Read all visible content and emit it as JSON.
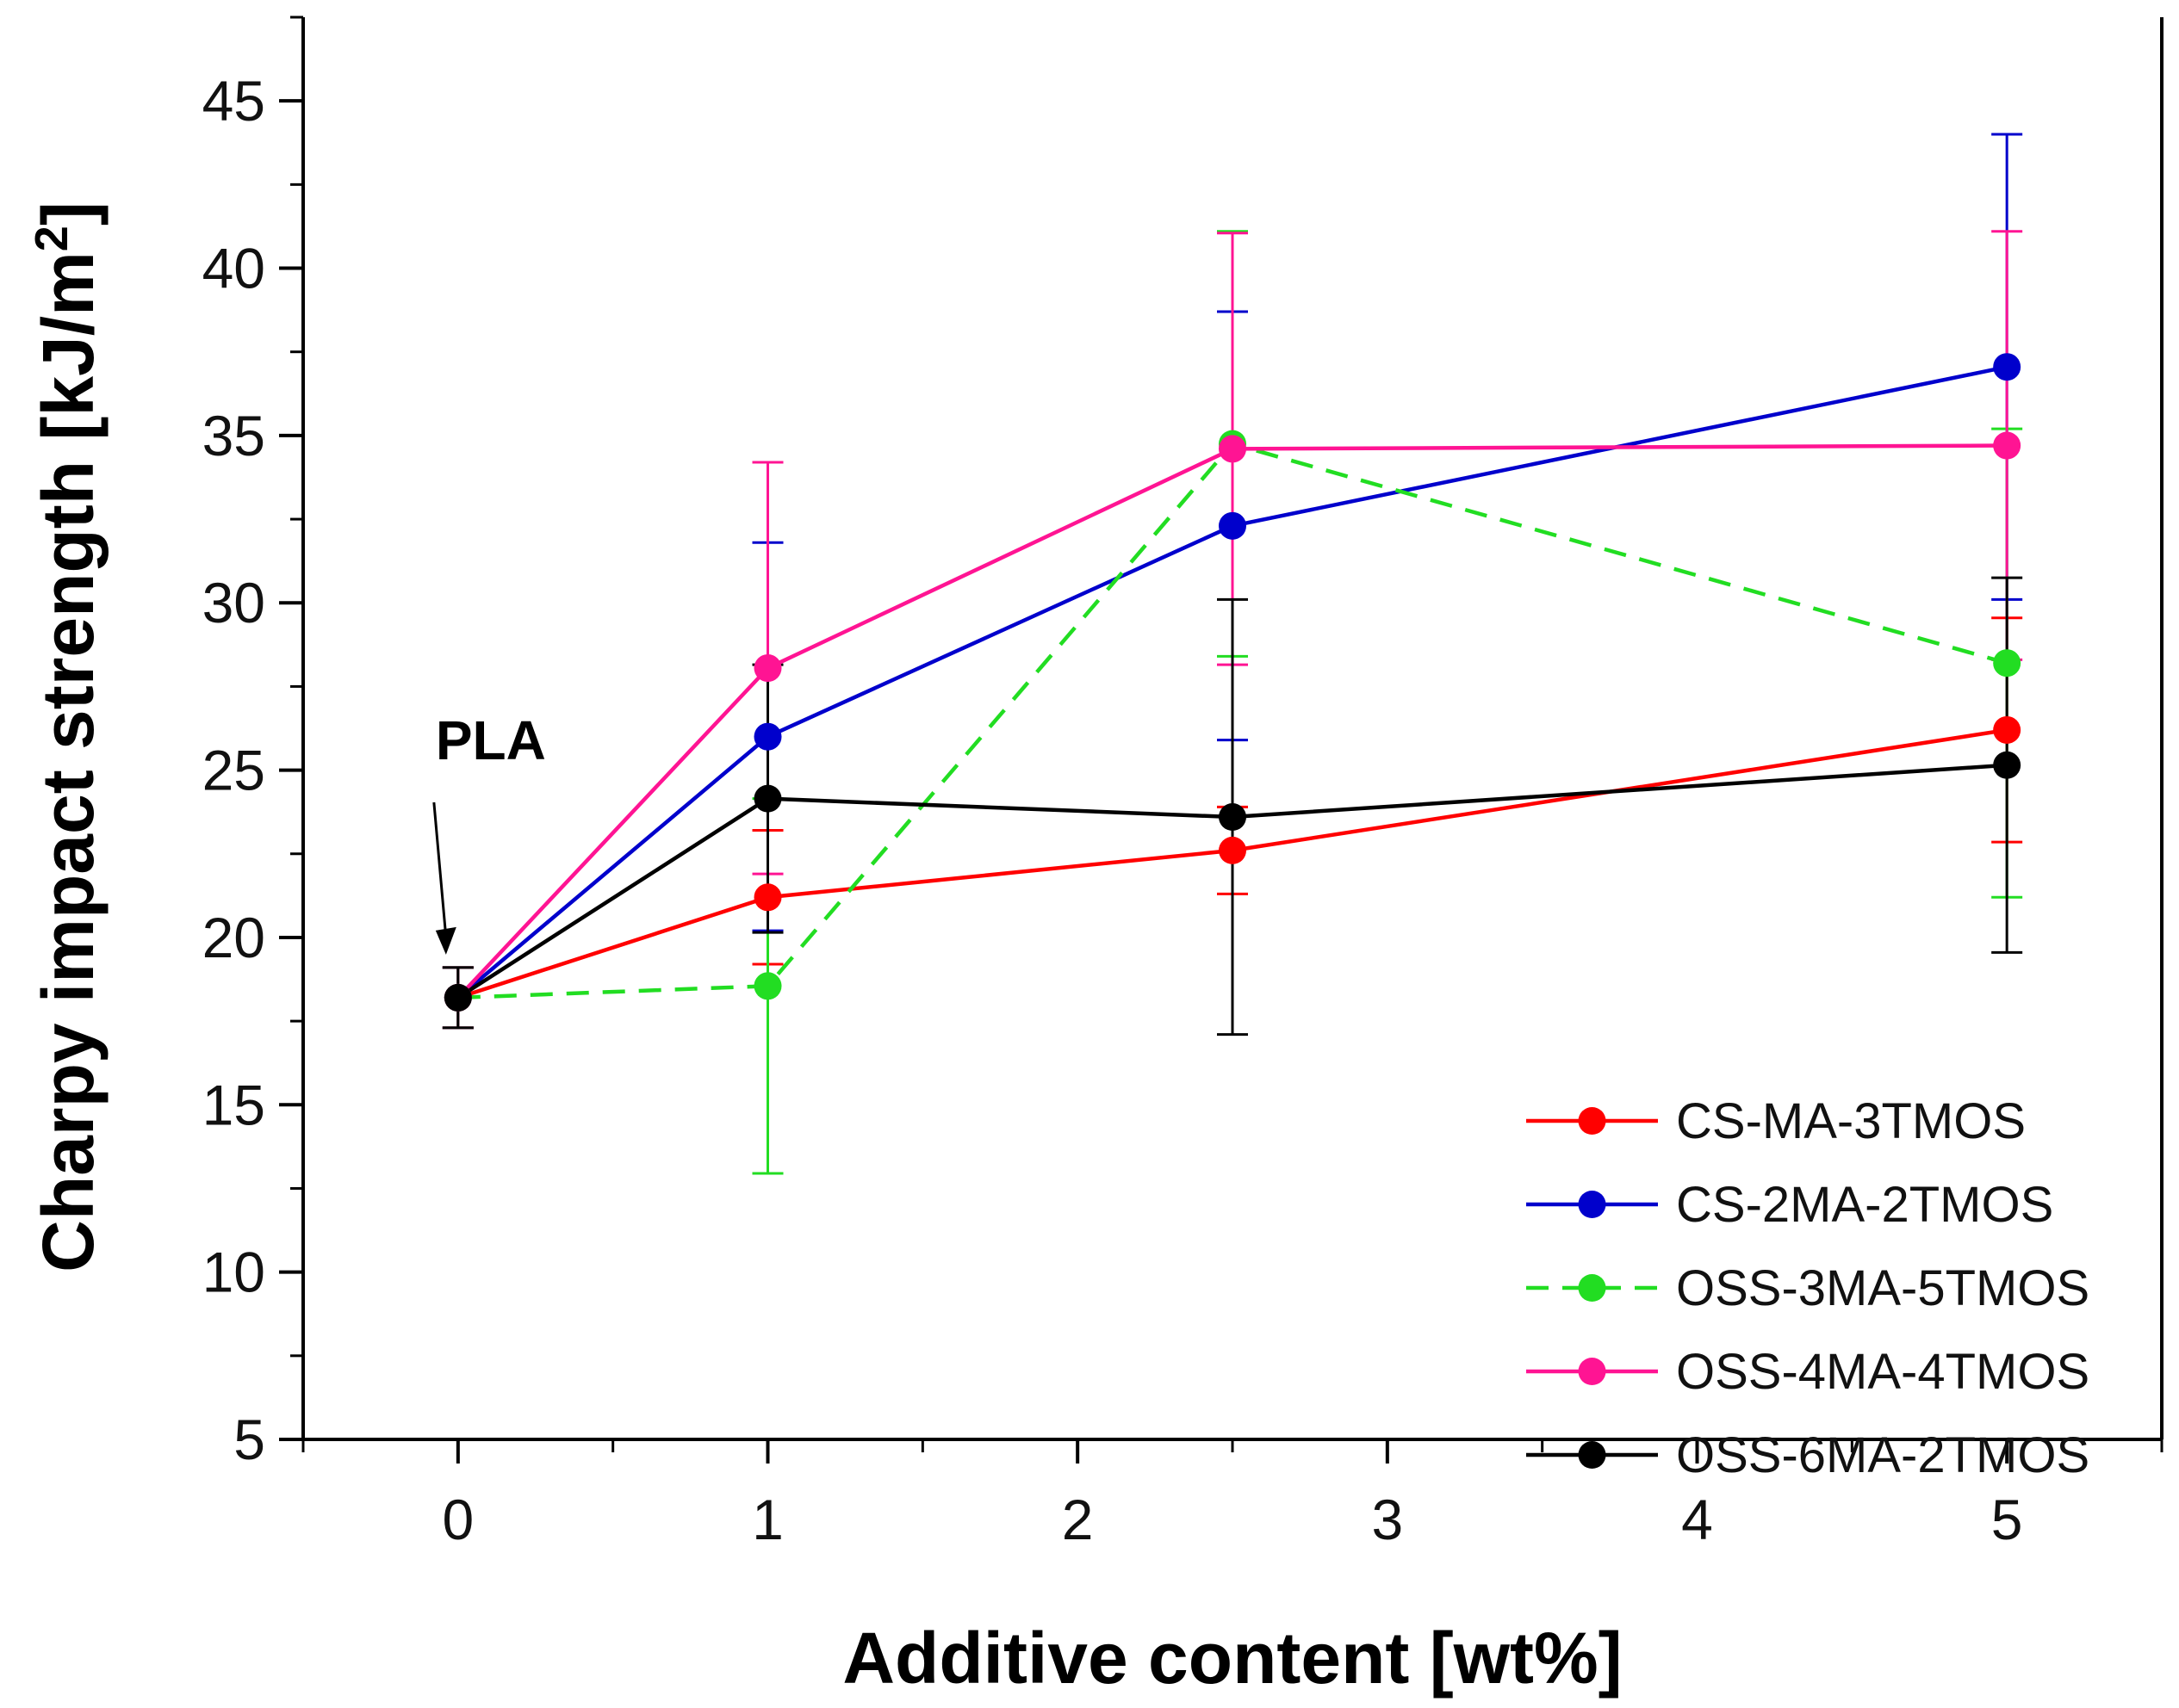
{
  "chart_data": {
    "type": "line",
    "title": "",
    "xlabel": "Additive content [wt%]",
    "ylabel_main": "Charpy impact strength [kJ/m",
    "ylabel_sup": "2",
    "ylabel_close": "]",
    "xlim": [
      -0.5,
      5.5
    ],
    "ylim": [
      5,
      47.5
    ],
    "xticks": [
      0,
      1,
      2,
      3,
      4,
      5
    ],
    "yticks": [
      5,
      10,
      15,
      20,
      25,
      30,
      35,
      40,
      45
    ],
    "grid": false,
    "legend_position": "bottom-right",
    "annotation": {
      "text": "PLA",
      "x": 0,
      "y": 18.2
    },
    "series": [
      {
        "name": "CS-MA-3TMOS",
        "color": "#ff0000",
        "dash": false,
        "x": [
          0,
          1,
          2.5,
          5
        ],
        "y": [
          18.2,
          21.2,
          22.6,
          26.2
        ],
        "err": [
          0.9,
          2.0,
          1.3,
          3.35
        ]
      },
      {
        "name": "CS-2MA-2TMOS",
        "color": "#0000cc",
        "dash": false,
        "x": [
          0,
          1,
          2.5,
          5
        ],
        "y": [
          18.2,
          26.0,
          32.3,
          37.05
        ],
        "err": [
          0.9,
          5.8,
          6.4,
          6.95
        ]
      },
      {
        "name": "OSS-3MA-5TMOS",
        "color": "#22dd22",
        "dash": true,
        "x": [
          0,
          1,
          2.5,
          5
        ],
        "y": [
          18.2,
          18.55,
          34.75,
          28.2
        ],
        "err": [
          0.9,
          5.6,
          6.35,
          7.0
        ]
      },
      {
        "name": "OSS-4MA-4TMOS",
        "color": "#ff1493",
        "dash": false,
        "x": [
          0,
          1,
          2.5,
          5
        ],
        "y": [
          18.2,
          28.05,
          34.6,
          34.7
        ],
        "err": [
          0.9,
          6.15,
          6.45,
          6.4
        ]
      },
      {
        "name": "OSS-6MA-2TMOS",
        "color": "#000000",
        "dash": false,
        "x": [
          0,
          1,
          2.5,
          5
        ],
        "y": [
          18.2,
          24.15,
          23.6,
          25.15
        ],
        "err": [
          0.9,
          4.0,
          6.5,
          5.6
        ]
      }
    ]
  }
}
